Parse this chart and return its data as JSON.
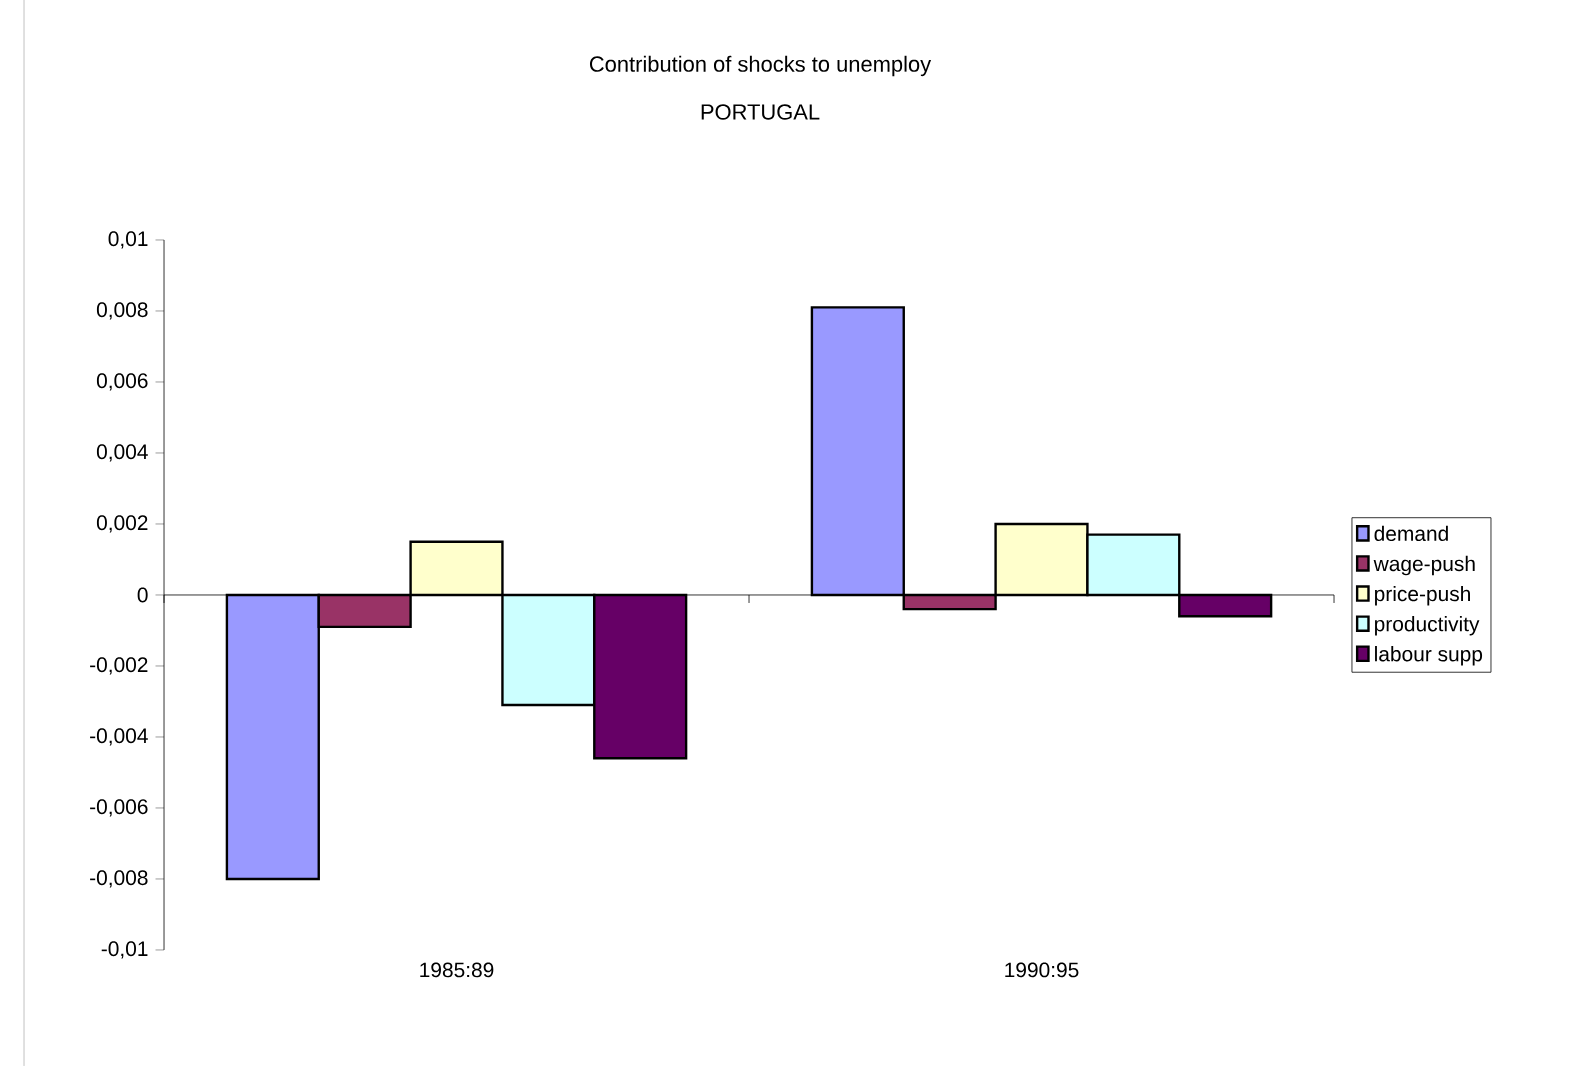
{
  "chart_data": {
    "type": "bar",
    "title": "Contribution of shocks to unemploy",
    "subtitle": "PORTUGAL",
    "categories": [
      "1985:89",
      "1990:95"
    ],
    "series": [
      {
        "name": "demand",
        "color": "#9999ff",
        "values": [
          -0.008,
          0.0081
        ]
      },
      {
        "name": "wage-push",
        "color": "#993366",
        "values": [
          -0.0009,
          -0.0004
        ]
      },
      {
        "name": "price-push",
        "color": "#ffffcc",
        "values": [
          0.0015,
          0.002
        ]
      },
      {
        "name": "productivity",
        "color": "#ccffff",
        "values": [
          -0.0031,
          0.0017
        ]
      },
      {
        "name": "labour supp",
        "color": "#660066",
        "values": [
          -0.0046,
          -0.0006
        ]
      }
    ],
    "ylim": [
      -0.01,
      0.01
    ],
    "yticks": [
      {
        "value": -0.01,
        "label": "-0,01"
      },
      {
        "value": -0.008,
        "label": "-0,008"
      },
      {
        "value": -0.006,
        "label": "-0,006"
      },
      {
        "value": -0.004,
        "label": "-0,004"
      },
      {
        "value": -0.002,
        "label": "-0,002"
      },
      0,
      {
        "value": 0.002,
        "label": "0,002"
      },
      {
        "value": 0.004,
        "label": "0,004"
      },
      {
        "value": 0.006,
        "label": "0,006"
      },
      {
        "value": 0.008,
        "label": "0,008"
      },
      {
        "value": 0.01,
        "label": "0,01"
      }
    ],
    "ref_lines": [
      {
        "axis": "y",
        "value": 0,
        "color": "#000000"
      }
    ],
    "grid": false,
    "legend": "right"
  }
}
